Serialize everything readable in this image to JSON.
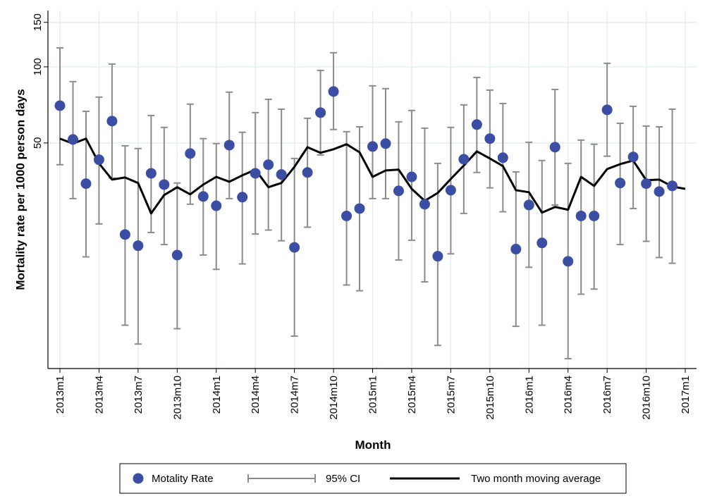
{
  "chart_data": {
    "type": "line",
    "x_label": "Month",
    "y_label": "Mortality rate per 1000 person days",
    "yscale": "log",
    "ylim": [
      6.4,
      167
    ],
    "yticks": [
      50,
      100,
      150
    ],
    "grid": true,
    "categories": [
      "2013m1",
      null,
      null,
      "2013m4",
      null,
      null,
      "2013m7",
      null,
      null,
      "2013m10",
      null,
      null,
      "2014m1",
      null,
      null,
      "2014m4",
      null,
      null,
      "2014m7",
      null,
      null,
      "2014m10",
      null,
      null,
      "2015m1",
      null,
      null,
      "2015m4",
      null,
      null,
      "2015m7",
      null,
      null,
      "2015m10",
      null,
      null,
      "2016m1",
      null,
      null,
      "2016m4",
      null,
      null,
      "2016m7",
      null,
      null,
      "2016m10",
      null,
      null,
      "2017m1"
    ],
    "series": [
      {
        "name": "Motality Rate",
        "color": "#3b4ea3",
        "values": [
          70.2,
          51.6,
          34.5,
          42.9,
          61.0,
          21.7,
          19.6,
          37.9,
          34.2,
          18.0,
          45.4,
          30.7,
          28.2,
          49.0,
          30.5,
          37.9,
          41.0,
          37.5,
          19.3,
          38.2,
          65.9,
          79.9,
          25.7,
          27.5,
          48.4,
          49.7,
          32.3,
          36.7,
          28.6,
          17.8,
          32.5,
          43.1,
          59.1,
          52.0,
          43.7,
          19.0,
          28.4,
          20.1,
          48.1,
          17.0,
          25.7,
          25.7,
          67.6,
          34.7,
          44.0,
          34.5,
          32.1,
          33.8,
          null
        ]
      },
      {
        "name": "95% CI",
        "color": "#8c8c8c",
        "lower": [
          41.0,
          30.1,
          17.7,
          23.9,
          36.3,
          9.5,
          8.0,
          22.1,
          19.8,
          9.2,
          28.6,
          18.0,
          15.8,
          30.1,
          16.6,
          21.8,
          22.6,
          20.5,
          8.6,
          23.2,
          44.8,
          56.5,
          13.7,
          13.0,
          30.1,
          30.1,
          17.2,
          20.6,
          14.1,
          7.9,
          18.2,
          26.3,
          38.2,
          33.2,
          26.7,
          9.4,
          16.1,
          9.5,
          28.4,
          7.0,
          12.6,
          13.2,
          44.3,
          19.8,
          27.5,
          20.4,
          17.6,
          16.7,
          null
        ],
        "upper": [
          118.9,
          87.4,
          66.7,
          75.9,
          102.6,
          48.7,
          47.5,
          64.2,
          57.6,
          34.7,
          71.2,
          52.0,
          49.7,
          79.4,
          55.1,
          65.9,
          74.4,
          68.0,
          43.4,
          62.6,
          96.8,
          113.7,
          55.4,
          57.9,
          84.1,
          82.0,
          60.6,
          67.2,
          57.2,
          41.5,
          57.6,
          70.7,
          90.8,
          80.9,
          71.6,
          38.4,
          50.3,
          42.6,
          81.4,
          41.5,
          51.3,
          49.4,
          103.3,
          59.8,
          69.8,
          58.3,
          57.9,
          68.0,
          null
        ]
      },
      {
        "name": "Two month moving average",
        "color": "#000000",
        "values": [
          52.0,
          49.7,
          52.0,
          41.5,
          35.8,
          36.5,
          34.7,
          26.3,
          31.1,
          33.4,
          31.3,
          34.2,
          36.7,
          35.1,
          37.2,
          39.2,
          33.4,
          34.7,
          40.2,
          48.1,
          45.7,
          47.2,
          49.4,
          45.9,
          36.7,
          38.9,
          39.2,
          32.9,
          29.5,
          31.7,
          36.0,
          40.7,
          46.3,
          43.4,
          40.5,
          32.5,
          31.9,
          26.5,
          27.9,
          27.2,
          36.7,
          33.8,
          39.4,
          41.2,
          42.6,
          35.6,
          35.8,
          33.6,
          32.9
        ]
      }
    ]
  }
}
